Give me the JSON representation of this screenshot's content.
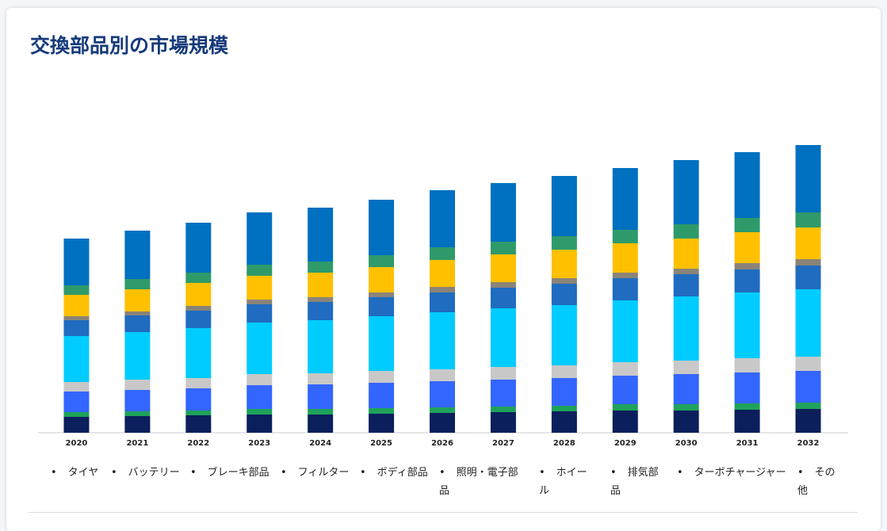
{
  "chart_data": {
    "type": "stacked_bar",
    "title": "交換部品別の市場規模",
    "categories": [
      "2020",
      "2021",
      "2022",
      "2023",
      "2024",
      "2025",
      "2026",
      "2027",
      "2028",
      "2029",
      "2030",
      "2031",
      "2032"
    ],
    "series": [
      {
        "name": "タイヤ",
        "color": "#0b1f5c",
        "values": [
          20,
          21,
          22,
          23,
          23,
          24,
          25,
          26,
          27,
          28,
          28,
          29,
          30
        ]
      },
      {
        "name": "バッテリー",
        "color": "#1fa35a",
        "values": [
          6,
          6,
          6,
          7,
          7,
          7,
          7,
          7,
          7,
          8,
          8,
          8,
          8
        ]
      },
      {
        "name": "ブレーキ部品",
        "color": "#3366ff",
        "values": [
          26,
          27,
          28,
          30,
          31,
          32,
          33,
          34,
          35,
          36,
          38,
          39,
          40
        ]
      },
      {
        "name": "フィルター",
        "color": "#c8c8c8",
        "values": [
          12,
          13,
          13,
          14,
          14,
          15,
          15,
          16,
          16,
          17,
          17,
          18,
          18
        ]
      },
      {
        "name": "ボディ部品",
        "color": "#00ccff",
        "values": [
          58,
          60,
          63,
          65,
          67,
          69,
          72,
          74,
          76,
          78,
          81,
          83,
          85
        ]
      },
      {
        "name": "照明・電子部品",
        "color": "#1f6cc0",
        "values": [
          20,
          21,
          22,
          23,
          23,
          24,
          25,
          26,
          27,
          28,
          28,
          29,
          30
        ]
      },
      {
        "name": "ホイール",
        "color": "#8a8478",
        "values": [
          5,
          5,
          6,
          6,
          6,
          6,
          7,
          7,
          7,
          7,
          7,
          8,
          8
        ]
      },
      {
        "name": "排気部品",
        "color": "#ffc000",
        "values": [
          27,
          28,
          29,
          30,
          31,
          32,
          34,
          35,
          36,
          37,
          38,
          39,
          40
        ]
      },
      {
        "name": "ターボチャージャー",
        "color": "#2e9a6a",
        "values": [
          12,
          13,
          13,
          14,
          14,
          15,
          16,
          16,
          17,
          17,
          18,
          18,
          19
        ]
      },
      {
        "name": "その他",
        "color": "#0070c0",
        "values": [
          59,
          61,
          63,
          66,
          68,
          70,
          72,
          74,
          76,
          78,
          81,
          83,
          85
        ]
      }
    ]
  }
}
